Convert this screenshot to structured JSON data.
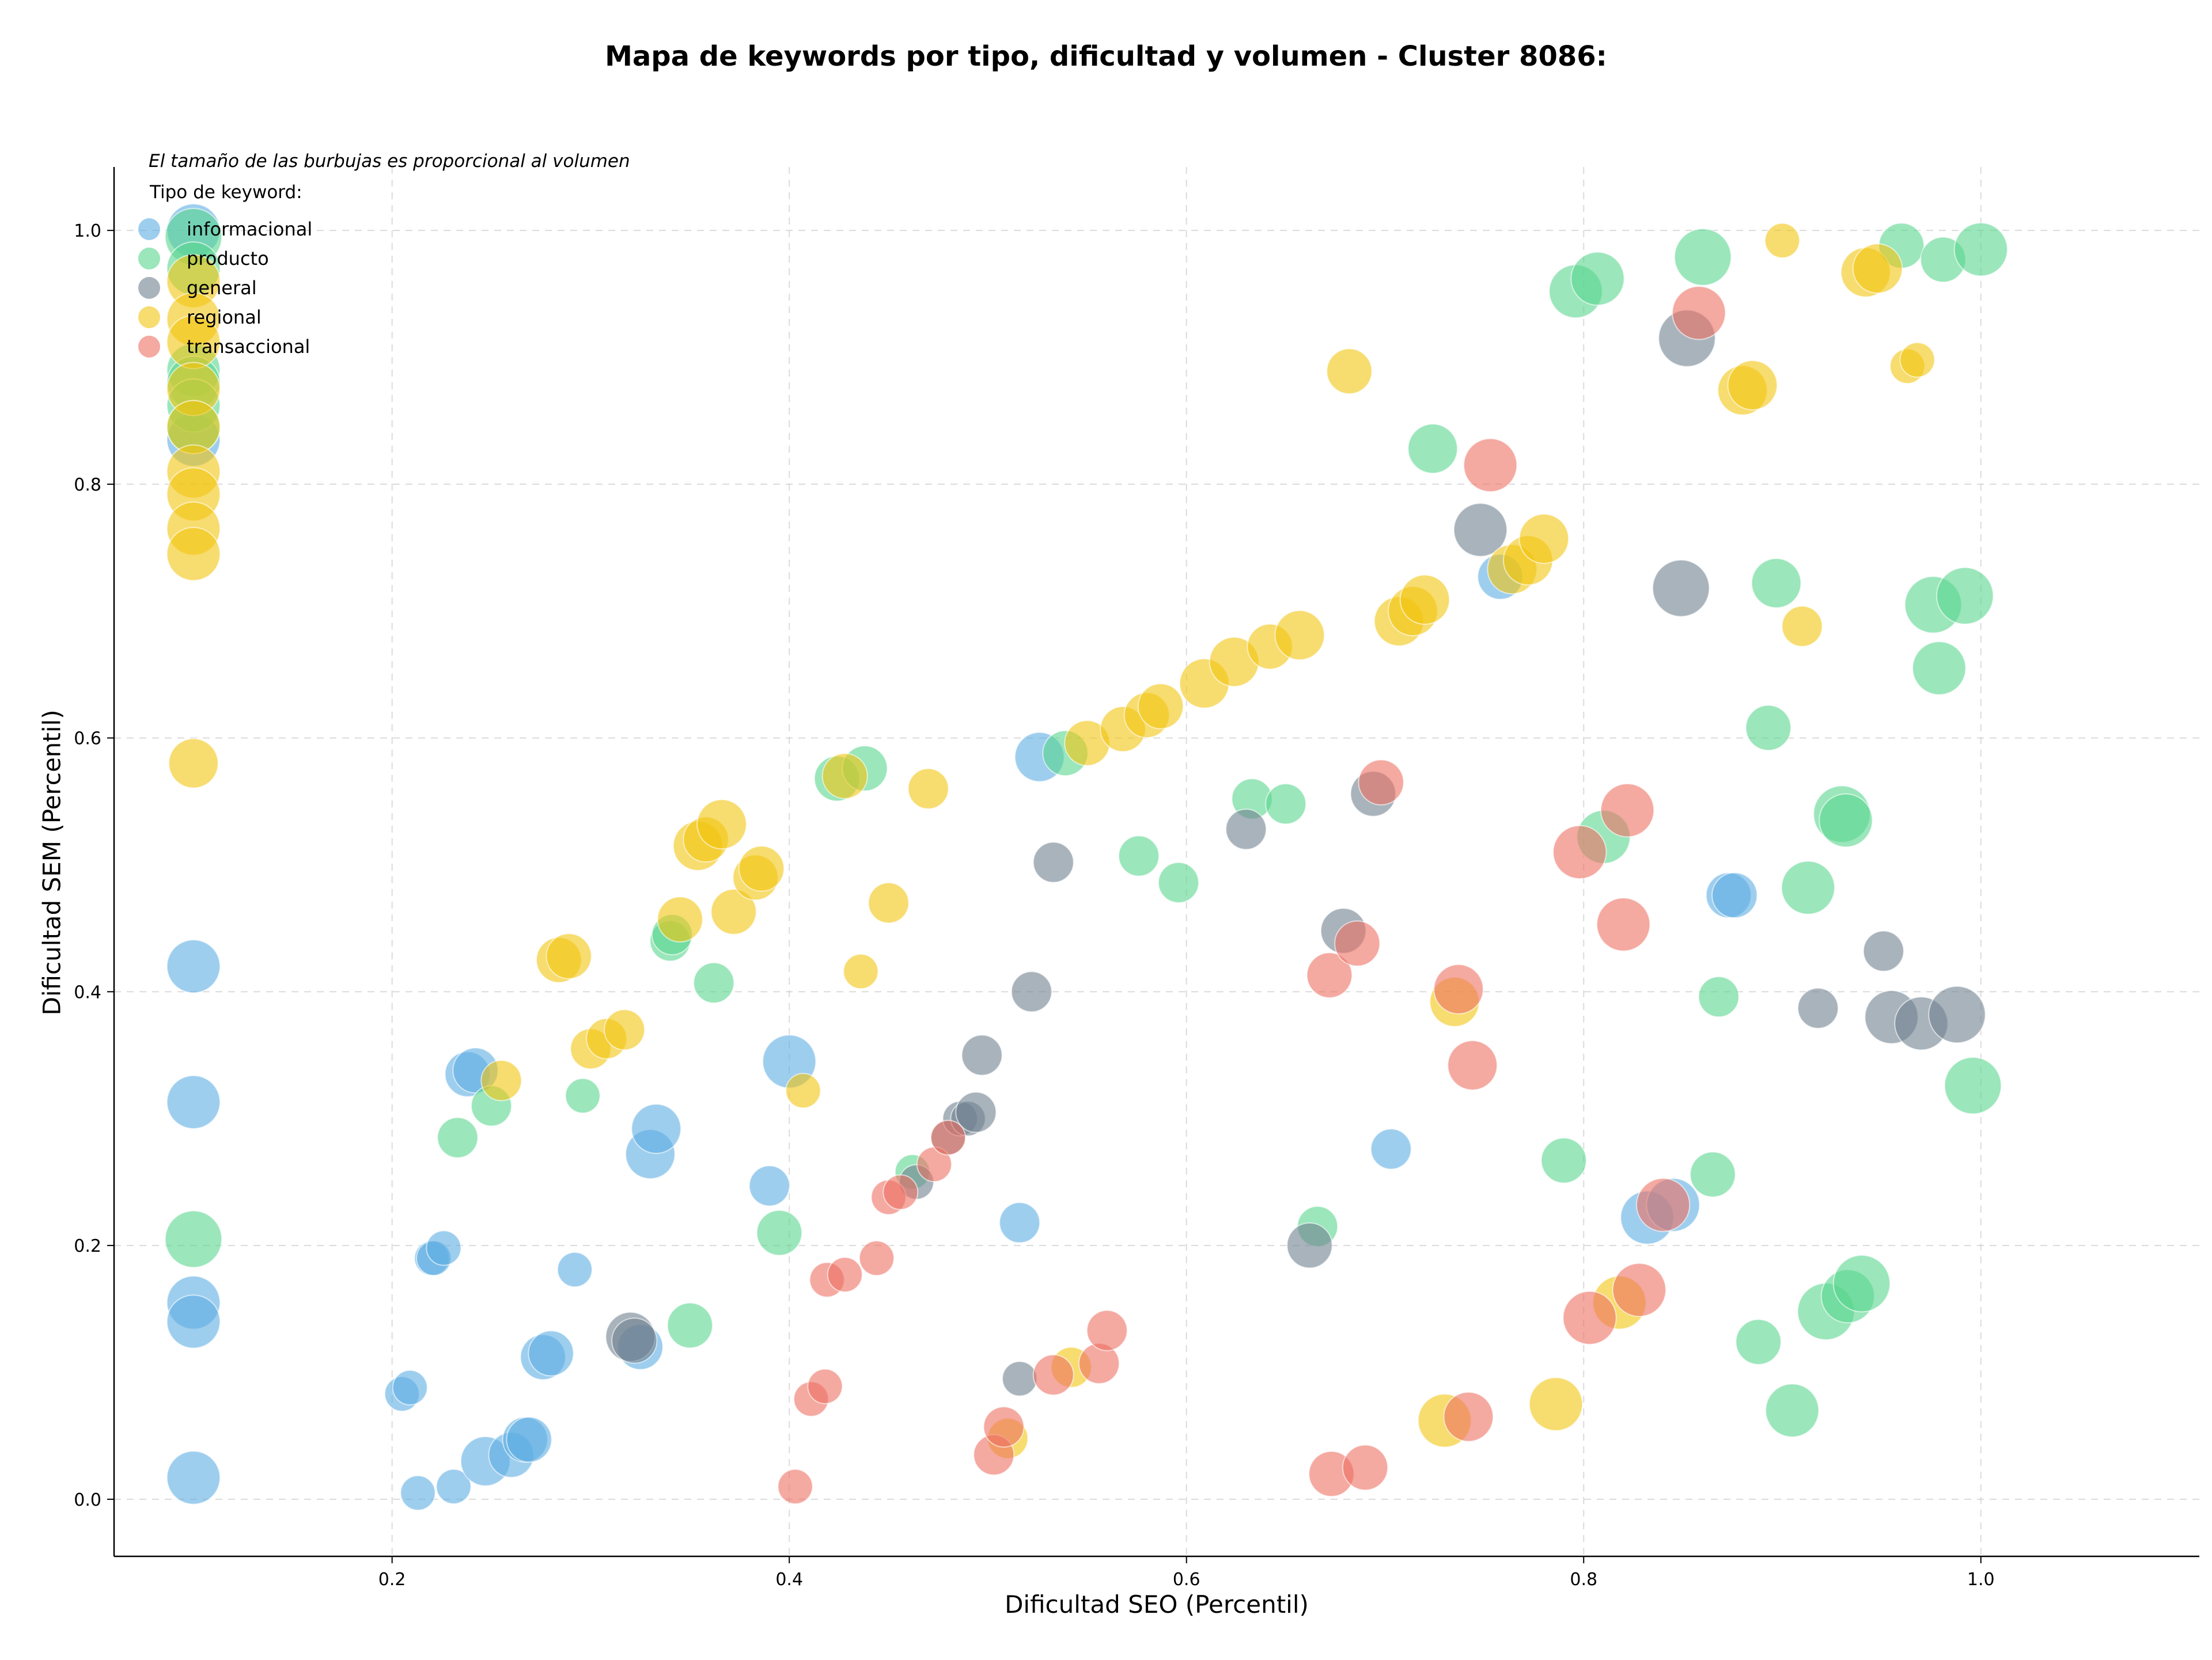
{
  "chart_data": {
    "type": "scatter",
    "title": "Mapa de keywords por tipo, dificultad y volumen - Cluster 8086:",
    "xlabel": "Dificultad SEO (Percentil)",
    "ylabel": "Dificultad SEM (Percentil)",
    "annotation": "El tamaño de las burbujas es proporcional al volumen",
    "legend_title": "Tipo de keyword:",
    "legend_position": "top-left",
    "grid": true,
    "xlim": [
      0.06,
      1.11
    ],
    "ylim": [
      -0.045,
      1.05
    ],
    "xticks": [
      "0.2",
      "0.4",
      "0.6",
      "0.8",
      "1.0"
    ],
    "yticks": [
      "0.0",
      "0.2",
      "0.4",
      "0.6",
      "0.8",
      "1.0"
    ],
    "series": [
      {
        "name": "informacional",
        "color": "#5DADE2",
        "points": [
          [
            0.1,
            1.0,
            3
          ],
          [
            0.1,
            0.835,
            3
          ],
          [
            0.1,
            0.42,
            3
          ],
          [
            0.1,
            0.313,
            3
          ],
          [
            0.1,
            0.155,
            3
          ],
          [
            0.1,
            0.14,
            3
          ],
          [
            0.1,
            0.017,
            3
          ],
          [
            0.205,
            0.083,
            1
          ],
          [
            0.209,
            0.088,
            1
          ],
          [
            0.213,
            0.005,
            1
          ],
          [
            0.22,
            0.19,
            1
          ],
          [
            0.221,
            0.19,
            1
          ],
          [
            0.226,
            0.198,
            1
          ],
          [
            0.231,
            0.01,
            1
          ],
          [
            0.238,
            0.335,
            2
          ],
          [
            0.242,
            0.338,
            2
          ],
          [
            0.247,
            0.03,
            2.5
          ],
          [
            0.26,
            0.035,
            2
          ],
          [
            0.267,
            0.047,
            2
          ],
          [
            0.269,
            0.047,
            2
          ],
          [
            0.276,
            0.112,
            2
          ],
          [
            0.28,
            0.115,
            2
          ],
          [
            0.292,
            0.181,
            1
          ],
          [
            0.325,
            0.12,
            2
          ],
          [
            0.33,
            0.272,
            2.5
          ],
          [
            0.333,
            0.292,
            2.5
          ],
          [
            0.39,
            0.247,
            1.5
          ],
          [
            0.4,
            0.345,
            3
          ],
          [
            0.516,
            0.218,
            1.5
          ],
          [
            0.526,
            0.585,
            2.5
          ],
          [
            0.703,
            0.276,
            1.5
          ],
          [
            0.758,
            0.727,
            2
          ],
          [
            0.832,
            0.222,
            3
          ],
          [
            0.845,
            0.232,
            3
          ],
          [
            0.873,
            0.476,
            2
          ],
          [
            0.876,
            0.476,
            2
          ]
        ]
      },
      {
        "name": "producto",
        "color": "#58D68D",
        "points": [
          [
            0.1,
            0.995,
            3.5
          ],
          [
            0.1,
            0.97,
            3
          ],
          [
            0.1,
            0.89,
            3
          ],
          [
            0.1,
            0.88,
            3
          ],
          [
            0.1,
            0.862,
            3
          ],
          [
            0.1,
            0.845,
            3
          ],
          [
            0.1,
            0.205,
            3.5
          ],
          [
            0.233,
            0.285,
            1.5
          ],
          [
            0.25,
            0.31,
            1.5
          ],
          [
            0.296,
            0.318,
            1
          ],
          [
            0.34,
            0.44,
            1.5
          ],
          [
            0.341,
            0.445,
            1.5
          ],
          [
            0.35,
            0.137,
            2
          ],
          [
            0.362,
            0.407,
            1.5
          ],
          [
            0.395,
            0.21,
            2
          ],
          [
            0.424,
            0.568,
            2
          ],
          [
            0.438,
            0.576,
            2
          ],
          [
            0.462,
            0.258,
            1
          ],
          [
            0.539,
            0.588,
            2
          ],
          [
            0.576,
            0.507,
            1.5
          ],
          [
            0.596,
            0.486,
            1.5
          ],
          [
            0.633,
            0.552,
            1.5
          ],
          [
            0.65,
            0.548,
            1.5
          ],
          [
            0.666,
            0.215,
            1.5
          ],
          [
            0.724,
            0.828,
            2.5
          ],
          [
            0.796,
            0.952,
            3
          ],
          [
            0.807,
            0.962,
            3
          ],
          [
            0.81,
            0.522,
            3
          ],
          [
            0.79,
            0.267,
            2
          ],
          [
            0.86,
            0.979,
            3.5
          ],
          [
            0.865,
            0.256,
            2
          ],
          [
            0.868,
            0.396,
            1.5
          ],
          [
            0.888,
            0.124,
            2
          ],
          [
            0.893,
            0.608,
            2
          ],
          [
            0.897,
            0.722,
            2.5
          ],
          [
            0.905,
            0.07,
            3
          ],
          [
            0.913,
            0.482,
            3
          ],
          [
            0.922,
            0.148,
            3.5
          ],
          [
            0.93,
            0.54,
            3.5
          ],
          [
            0.932,
            0.535,
            3
          ],
          [
            0.933,
            0.16,
            3
          ],
          [
            0.94,
            0.17,
            3.5
          ],
          [
            0.96,
            0.988,
            2
          ],
          [
            0.976,
            0.705,
            3.5
          ],
          [
            0.979,
            0.655,
            3
          ],
          [
            0.981,
            0.977,
            2
          ],
          [
            0.992,
            0.712,
            3.5
          ],
          [
            0.996,
            0.326,
            3.5
          ],
          [
            1.0,
            0.985,
            3
          ]
        ]
      },
      {
        "name": "general",
        "color": "#708090",
        "points": [
          [
            0.32,
            0.128,
            2.5
          ],
          [
            0.322,
            0.125,
            2
          ],
          [
            0.464,
            0.25,
            1
          ],
          [
            0.48,
            0.285,
            1
          ],
          [
            0.486,
            0.3,
            1
          ],
          [
            0.49,
            0.3,
            1
          ],
          [
            0.494,
            0.305,
            1.5
          ],
          [
            0.497,
            0.35,
            1.5
          ],
          [
            0.516,
            0.095,
            1
          ],
          [
            0.522,
            0.4,
            1.5
          ],
          [
            0.533,
            0.502,
            1.5
          ],
          [
            0.63,
            0.528,
            1.5
          ],
          [
            0.662,
            0.2,
            2
          ],
          [
            0.679,
            0.448,
            2
          ],
          [
            0.694,
            0.556,
            2
          ],
          [
            0.748,
            0.764,
            3
          ],
          [
            0.849,
            0.718,
            3.5
          ],
          [
            0.852,
            0.915,
            3.5
          ],
          [
            0.918,
            0.387,
            1.5
          ],
          [
            0.951,
            0.432,
            1.5
          ],
          [
            0.955,
            0.38,
            3
          ],
          [
            0.97,
            0.375,
            3
          ],
          [
            0.988,
            0.382,
            3.5
          ]
        ]
      },
      {
        "name": "regional",
        "color": "#F1C40F",
        "points": [
          [
            0.1,
            0.96,
            3
          ],
          [
            0.1,
            0.93,
            3
          ],
          [
            0.1,
            0.912,
            3
          ],
          [
            0.1,
            0.875,
            3
          ],
          [
            0.1,
            0.845,
            3
          ],
          [
            0.1,
            0.81,
            3
          ],
          [
            0.1,
            0.792,
            3
          ],
          [
            0.1,
            0.765,
            3
          ],
          [
            0.1,
            0.745,
            3
          ],
          [
            0.1,
            0.58,
            2.5
          ],
          [
            0.255,
            0.33,
            1.5
          ],
          [
            0.284,
            0.425,
            2
          ],
          [
            0.289,
            0.428,
            2
          ],
          [
            0.3,
            0.355,
            1.5
          ],
          [
            0.308,
            0.363,
            1.5
          ],
          [
            0.317,
            0.37,
            1.5
          ],
          [
            0.345,
            0.457,
            2
          ],
          [
            0.354,
            0.515,
            2.5
          ],
          [
            0.358,
            0.52,
            2
          ],
          [
            0.366,
            0.532,
            2.5
          ],
          [
            0.372,
            0.463,
            2
          ],
          [
            0.383,
            0.49,
            2
          ],
          [
            0.386,
            0.497,
            2
          ],
          [
            0.407,
            0.322,
            1
          ],
          [
            0.428,
            0.57,
            2
          ],
          [
            0.436,
            0.416,
            1
          ],
          [
            0.45,
            0.47,
            1.5
          ],
          [
            0.47,
            0.56,
            1.5
          ],
          [
            0.51,
            0.048,
            1.5
          ],
          [
            0.542,
            0.104,
            1.5
          ],
          [
            0.55,
            0.596,
            2
          ],
          [
            0.568,
            0.607,
            2
          ],
          [
            0.58,
            0.618,
            2
          ],
          [
            0.587,
            0.625,
            2
          ],
          [
            0.609,
            0.643,
            2.5
          ],
          [
            0.624,
            0.66,
            2.5
          ],
          [
            0.642,
            0.672,
            2
          ],
          [
            0.657,
            0.681,
            2.5
          ],
          [
            0.682,
            0.889,
            2
          ],
          [
            0.707,
            0.692,
            2.5
          ],
          [
            0.714,
            0.7,
            2.5
          ],
          [
            0.72,
            0.709,
            2.5
          ],
          [
            0.73,
            0.062,
            3
          ],
          [
            0.735,
            0.392,
            2.5
          ],
          [
            0.764,
            0.733,
            2.5
          ],
          [
            0.772,
            0.74,
            2.5
          ],
          [
            0.78,
            0.757,
            2.5
          ],
          [
            0.786,
            0.075,
            3
          ],
          [
            0.818,
            0.155,
            3
          ],
          [
            0.88,
            0.874,
            2.5
          ],
          [
            0.885,
            0.878,
            2.5
          ],
          [
            0.9,
            0.992,
            1
          ],
          [
            0.91,
            0.688,
            1.5
          ],
          [
            0.942,
            0.967,
            2.5
          ],
          [
            0.948,
            0.97,
            2.5
          ],
          [
            0.963,
            0.893,
            1
          ],
          [
            0.968,
            0.898,
            1
          ]
        ]
      },
      {
        "name": "transaccional",
        "color": "#EC7063",
        "points": [
          [
            0.403,
            0.01,
            1
          ],
          [
            0.411,
            0.079,
            1
          ],
          [
            0.418,
            0.089,
            1
          ],
          [
            0.419,
            0.173,
            1
          ],
          [
            0.428,
            0.177,
            1
          ],
          [
            0.444,
            0.19,
            1
          ],
          [
            0.45,
            0.238,
            1
          ],
          [
            0.456,
            0.242,
            1
          ],
          [
            0.473,
            0.264,
            1
          ],
          [
            0.48,
            0.285,
            1
          ],
          [
            0.503,
            0.035,
            1.5
          ],
          [
            0.508,
            0.057,
            1.5
          ],
          [
            0.533,
            0.098,
            1.5
          ],
          [
            0.556,
            0.107,
            1.5
          ],
          [
            0.56,
            0.133,
            1.5
          ],
          [
            0.672,
            0.413,
            2
          ],
          [
            0.673,
            0.02,
            2
          ],
          [
            0.686,
            0.438,
            2
          ],
          [
            0.69,
            0.025,
            2
          ],
          [
            0.698,
            0.565,
            2
          ],
          [
            0.737,
            0.402,
            2.5
          ],
          [
            0.742,
            0.065,
            2.5
          ],
          [
            0.744,
            0.342,
            2.5
          ],
          [
            0.753,
            0.815,
            3
          ],
          [
            0.798,
            0.51,
            3
          ],
          [
            0.803,
            0.143,
            3
          ],
          [
            0.822,
            0.543,
            3
          ],
          [
            0.82,
            0.453,
            3
          ],
          [
            0.828,
            0.165,
            3
          ],
          [
            0.84,
            0.232,
            3
          ],
          [
            0.858,
            0.935,
            3
          ]
        ]
      }
    ]
  }
}
